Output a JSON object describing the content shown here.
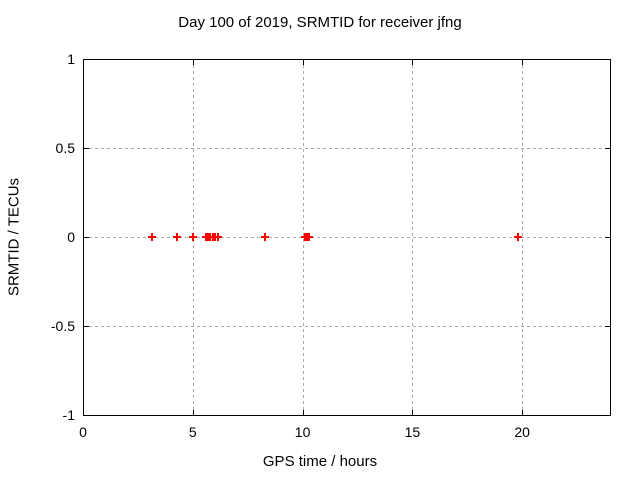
{
  "chart_data": {
    "type": "scatter",
    "title": "Day 100 of 2019, SRMTID for receiver jfng",
    "xlabel": "GPS time / hours",
    "ylabel": "SRMTID / TECUs",
    "xlim": [
      0,
      24
    ],
    "ylim": [
      -1,
      1
    ],
    "xticks": [
      0,
      5,
      10,
      15,
      20
    ],
    "yticks": [
      -1,
      -0.5,
      0,
      0.5,
      1
    ],
    "grid": true,
    "grid_style": "dashed",
    "legend": "none",
    "marker": "plus",
    "marker_color": "#ff0000",
    "grid_color": "#a9a9a9",
    "border_color": "#000000",
    "text_color": "#000000",
    "background": "#ffffff",
    "points": [
      [
        3.15,
        0
      ],
      [
        4.3,
        0
      ],
      [
        5.0,
        0
      ],
      [
        5.6,
        0
      ],
      [
        5.7,
        0
      ],
      [
        5.8,
        0
      ],
      [
        5.9,
        0
      ],
      [
        6.0,
        0
      ],
      [
        6.15,
        0
      ],
      [
        8.3,
        0
      ],
      [
        10.1,
        0
      ],
      [
        10.15,
        0
      ],
      [
        10.2,
        0
      ],
      [
        10.25,
        0
      ],
      [
        10.3,
        0
      ],
      [
        19.8,
        0
      ]
    ]
  }
}
